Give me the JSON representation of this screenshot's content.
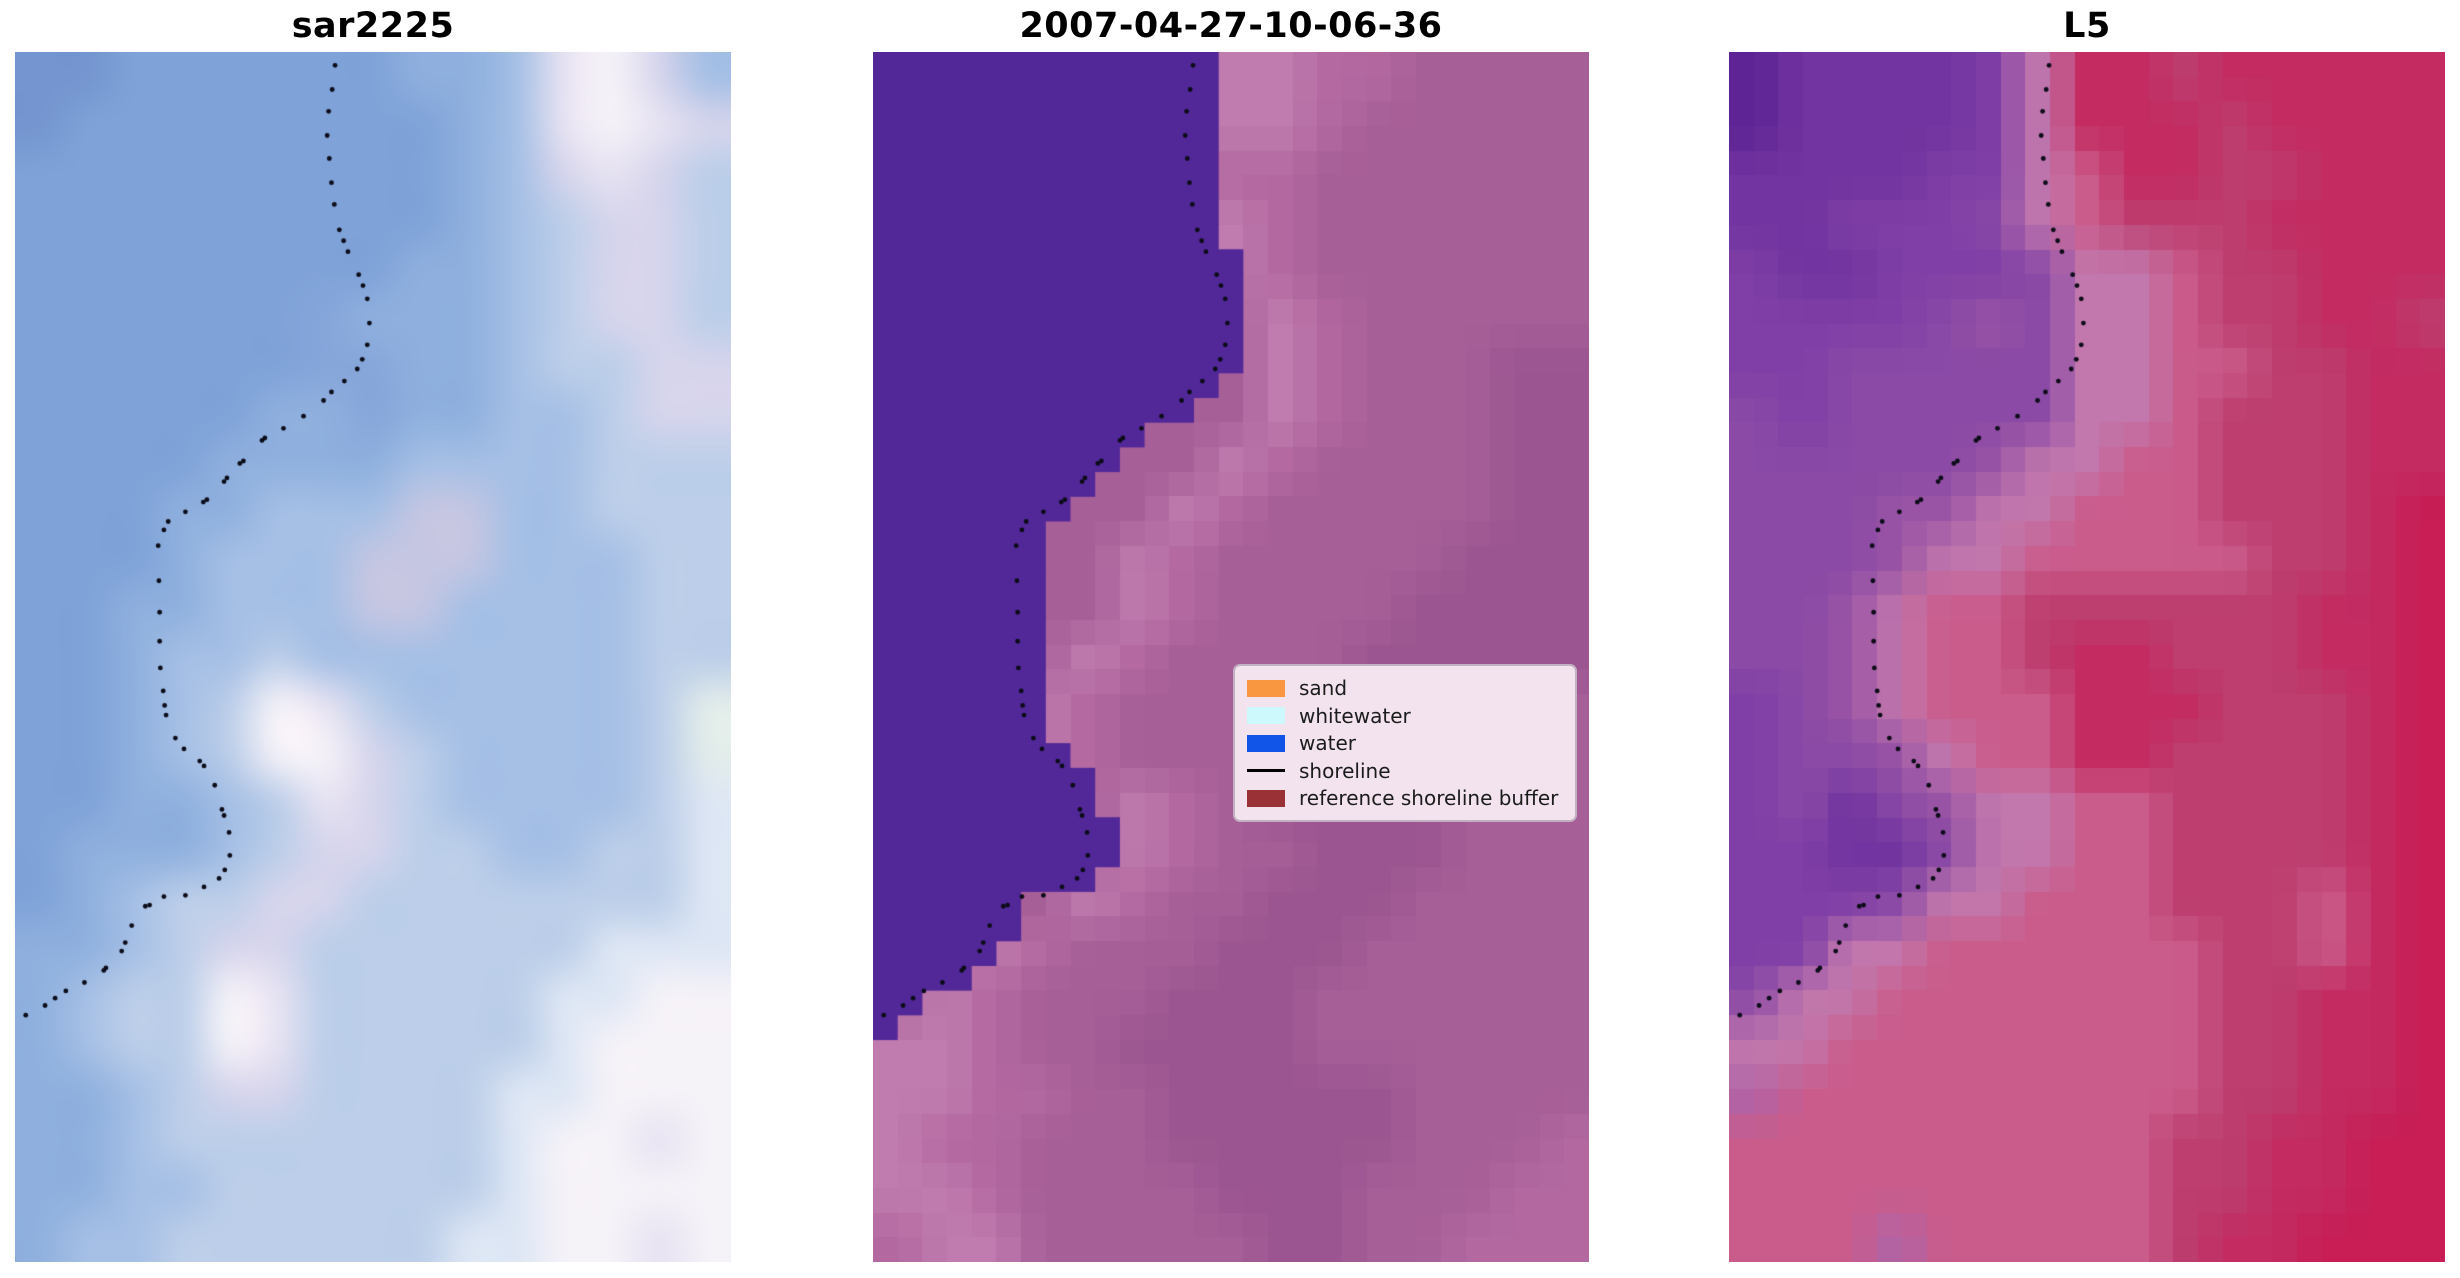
{
  "chart_data": {
    "type": "heatmap",
    "title": "",
    "layout": "three image panels side by side, no axes, white figure background",
    "figure_bg": "#ffffff",
    "panels": [
      {
        "title": "sar2225",
        "render": "smooth",
        "palette": {
          "a": "#7495cf",
          "b": "#7fa2d8",
          "c": "#8fb0de",
          "d": "#a5bfe5",
          "e": "#bccee9",
          "f": "#d6d5ec",
          "g": "#e7e3f2",
          "h": "#f5f2f8",
          "i": "#c5c6e2",
          "j": "#86a6da",
          "k": "#e2ecea",
          "l": "#dde6f4"
        },
        "rows": [
          "aabbbbbbccdghfd",
          "abbbbbbbbcdghgf",
          "bbbbbbbbbcdfgfe",
          "bbbbbbbbbcdeffe",
          "bbbbbbbbccdeffe",
          "bbbbbbjcccdeffe",
          "bbbbbbjjccdeeff",
          "bbbbbccjccddeff",
          "bbbbccccddddeee",
          "bbbccdddiiddeee",
          "bbbcdddiiidddee",
          "bbccdddiiddddee",
          "bbcddedddddddee",
          "bbcdehgedddddek",
          "bbcdehhfeddddek",
          "bbccdegfeddddel",
          "bcccdeffeeddeel",
          "bcdeeffeeeeeeel",
          "ccdeffeeeeeelll",
          "cdeehgeeeeellhh",
          "cdeehgeeeeelhhh",
          "ccdeffeeeellhhh",
          "ccdeeeeeeelhhgh",
          "ccddeeeeeelhhhh",
          "cddeeeeeellhhgh"
        ]
      },
      {
        "title": "2007-04-27-10-06-36",
        "render": "pixel",
        "palette": {
          "0": "#b56ba2",
          "1": "#a75f98",
          "2": "#9b5590",
          "3": "#c07cae",
          "4": "#8d4e85",
          "5": "#b368a0"
        },
        "rows": [
          "111111133051111",
          "111111133511111",
          "111111155111111",
          "111111135111111",
          "111111135111111",
          "111111113511111",
          "111111113511122",
          "111111113511122",
          "111111135111122",
          "111111351111122",
          "111113511111222",
          "111113511112222",
          "111135111122222",
          "111351111222221",
          "111351112222211",
          "111113512222111",
          "111113511222111",
          "111135112221111",
          "113511122211111",
          "135111222111111",
          "335112222111111",
          "335511222221111",
          "355111222221115",
          "335111122211155",
          "533111112211555"
        ],
        "class_overlay": {
          "color": "#522899",
          "comment": "classified water region, stair-stepped at native pixel grid",
          "grid_cols": 29,
          "grid_rows": 49,
          "boundary_offset": 0.033,
          "max_y_fraction": 0.812
        }
      },
      {
        "title": "L5",
        "render": "pixel",
        "palette": {
          "0": "#5e2395",
          "1": "#7134a0",
          "2": "#7f3fa6",
          "3": "#8a4aa6",
          "4": "#9a55a5",
          "5": "#b065a8",
          "6": "#c278ad",
          "7": "#bd3e6f",
          "8": "#c32b61",
          "9": "#c81d55",
          "A": "#ca5c8b"
        },
        "rows": [
          "011112688788888",
          "011112688878888",
          "1111226A8877888",
          "1122236A7778888",
          "211222366A77888",
          "222234366A77887",
          "223333366AA7788",
          "323333366A77788",
          "33333466AA77788",
          "3334466AAA77789",
          "333466AAAAA7789",
          "3346AA777777889",
          "3346AA788777889",
          "2346AAA88877789",
          "23346AA88777789",
          "2313466AA777789",
          "2211366AA777789",
          "222366AAA777A89",
          "2266AAAAAA77A89",
          "366AAAAAAA77889",
          "66AAAAAAAA77889",
          "5AAAAAAAAA77889",
          "AAAAAAAAA778899",
          "AAAAAAAAA778899",
          "AAA5AAAAA788999"
        ]
      }
    ],
    "shoreline": {
      "dot_color": "#0c0c18",
      "dot_radius": 2.4,
      "points": [
        [
          0.447,
          0.011
        ],
        [
          0.443,
          0.031
        ],
        [
          0.438,
          0.049
        ],
        [
          0.436,
          0.069
        ],
        [
          0.439,
          0.088
        ],
        [
          0.442,
          0.108
        ],
        [
          0.446,
          0.126
        ],
        [
          0.453,
          0.147
        ],
        [
          0.459,
          0.156
        ],
        [
          0.465,
          0.165
        ],
        [
          0.48,
          0.184
        ],
        [
          0.486,
          0.193
        ],
        [
          0.492,
          0.204
        ],
        [
          0.495,
          0.224
        ],
        [
          0.492,
          0.242
        ],
        [
          0.485,
          0.254
        ],
        [
          0.478,
          0.262
        ],
        [
          0.46,
          0.272
        ],
        [
          0.442,
          0.281
        ],
        [
          0.431,
          0.288
        ],
        [
          0.403,
          0.301
        ],
        [
          0.375,
          0.311
        ],
        [
          0.349,
          0.319
        ],
        [
          0.345,
          0.321
        ],
        [
          0.319,
          0.338
        ],
        [
          0.314,
          0.34
        ],
        [
          0.296,
          0.352
        ],
        [
          0.292,
          0.355
        ],
        [
          0.268,
          0.37
        ],
        [
          0.263,
          0.372
        ],
        [
          0.238,
          0.38
        ],
        [
          0.214,
          0.388
        ],
        [
          0.208,
          0.395
        ],
        [
          0.2,
          0.408
        ],
        [
          0.201,
          0.437
        ],
        [
          0.202,
          0.463
        ],
        [
          0.202,
          0.487
        ],
        [
          0.203,
          0.509
        ],
        [
          0.207,
          0.528
        ],
        [
          0.209,
          0.54
        ],
        [
          0.211,
          0.548
        ],
        [
          0.224,
          0.567
        ],
        [
          0.236,
          0.576
        ],
        [
          0.258,
          0.586
        ],
        [
          0.264,
          0.59
        ],
        [
          0.279,
          0.606
        ],
        [
          0.289,
          0.626
        ],
        [
          0.292,
          0.631
        ],
        [
          0.299,
          0.645
        ],
        [
          0.3,
          0.664
        ],
        [
          0.293,
          0.676
        ],
        [
          0.285,
          0.683
        ],
        [
          0.264,
          0.69
        ],
        [
          0.238,
          0.697
        ],
        [
          0.208,
          0.698
        ],
        [
          0.188,
          0.705
        ],
        [
          0.182,
          0.706
        ],
        [
          0.163,
          0.722
        ],
        [
          0.154,
          0.736
        ],
        [
          0.149,
          0.743
        ],
        [
          0.127,
          0.757
        ],
        [
          0.124,
          0.759
        ],
        [
          0.097,
          0.769
        ],
        [
          0.071,
          0.776
        ],
        [
          0.056,
          0.782
        ],
        [
          0.042,
          0.788
        ],
        [
          0.015,
          0.796
        ]
      ]
    },
    "legend": {
      "bg": "#f2e3ee",
      "border": "#c2b0c2",
      "text_color": "#1c1c1c",
      "items": [
        {
          "label": "sand",
          "type": "patch",
          "color": "#f8973f"
        },
        {
          "label": "whitewater",
          "type": "patch",
          "color": "#cdf9fd"
        },
        {
          "label": "water",
          "type": "patch",
          "color": "#1155e8"
        },
        {
          "label": "shoreline",
          "type": "line",
          "color": "#000000"
        },
        {
          "label": "reference shoreline buffer",
          "type": "patch",
          "color": "#993137"
        }
      ]
    }
  }
}
